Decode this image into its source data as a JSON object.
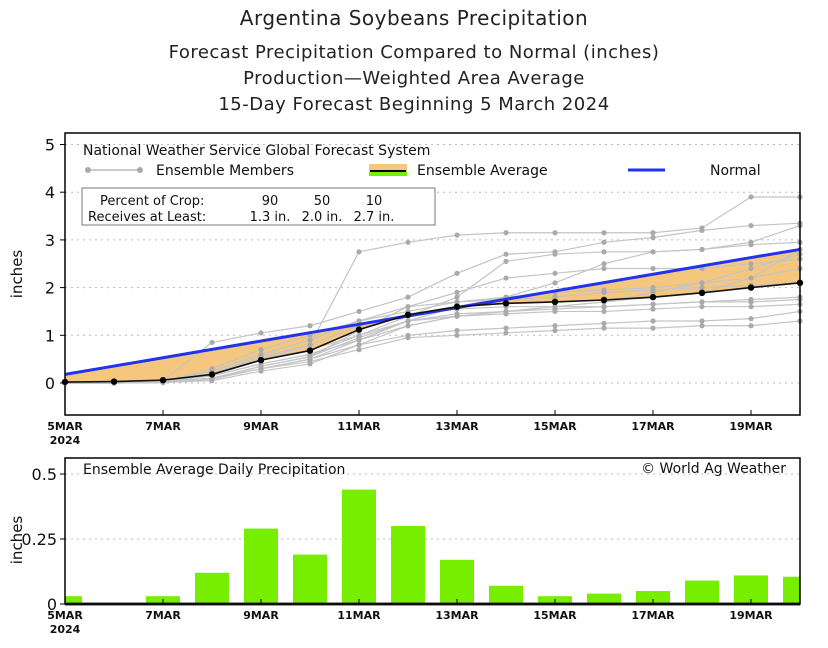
{
  "titles": [
    "Argentina Soybeans Precipitation",
    "Forecast Precipitation Compared to Normal (inches)",
    "Production—Weighted Area Average",
    "15-Day Forecast Beginning 5 March 2024"
  ],
  "chart_data": [
    {
      "type": "line",
      "ylabel": "inches",
      "ylim": [
        -0.67,
        5.2
      ],
      "yticks": [
        0,
        1,
        2,
        3,
        4,
        5
      ],
      "x_dates": [
        "5MAR",
        "6MAR",
        "7MAR",
        "8MAR",
        "9MAR",
        "10MAR",
        "11MAR",
        "12MAR",
        "13MAR",
        "14MAR",
        "15MAR",
        "16MAR",
        "17MAR",
        "18MAR",
        "19MAR",
        "20MAR"
      ],
      "xtick_labels": [
        {
          "label": "5MAR",
          "sub": "2024",
          "day": 5
        },
        {
          "label": "7MAR",
          "day": 7
        },
        {
          "label": "9MAR",
          "day": 9
        },
        {
          "label": "11MAR",
          "day": 11
        },
        {
          "label": "13MAR",
          "day": 13
        },
        {
          "label": "15MAR",
          "day": 15
        },
        {
          "label": "17MAR",
          "day": 17
        },
        {
          "label": "19MAR",
          "day": 19
        }
      ],
      "grid": true,
      "source_label": "National Weather Service Global Forecast System",
      "legend": [
        {
          "name": "Ensemble Members",
          "color": "#aaaaaa"
        },
        {
          "name": "Ensemble Average",
          "color": "#000000",
          "fill": "#f5c77e",
          "fill_below": "#77ee00"
        },
        {
          "name": "Normal",
          "color": "#2233ee"
        }
      ],
      "crop_table": {
        "row1_label": "Percent of Crop:",
        "row2_label": "Receives at Least:",
        "percents": [
          "90",
          "50",
          "10"
        ],
        "amounts": [
          "1.3 in.",
          "2.0 in.",
          "2.7 in."
        ]
      },
      "ensemble_average": [
        0.02,
        0.03,
        0.06,
        0.18,
        0.48,
        0.68,
        1.12,
        1.43,
        1.6,
        1.67,
        1.7,
        1.74,
        1.8,
        1.89,
        2.0,
        2.1
      ],
      "normal": [
        0.18,
        0.355,
        0.53,
        0.705,
        0.88,
        1.055,
        1.23,
        1.405,
        1.58,
        1.755,
        1.93,
        2.105,
        2.28,
        2.455,
        2.63,
        2.8
      ],
      "ensemble_members": [
        [
          0,
          0,
          0.05,
          0.2,
          0.5,
          0.8,
          2.75,
          2.95,
          3.1,
          3.15,
          3.15,
          3.15,
          3.15,
          3.25,
          3.9,
          3.9
        ],
        [
          0,
          0,
          0.05,
          0.85,
          1.05,
          1.2,
          1.5,
          1.8,
          2.3,
          2.7,
          2.75,
          2.95,
          3.05,
          3.2,
          3.3,
          3.35
        ],
        [
          0,
          0,
          0.03,
          0.15,
          0.4,
          0.6,
          1.0,
          1.4,
          1.8,
          2.55,
          2.7,
          2.75,
          2.75,
          2.8,
          2.9,
          2.95
        ],
        [
          0,
          0,
          0.02,
          0.1,
          0.3,
          0.5,
          0.9,
          1.3,
          1.6,
          1.8,
          2.1,
          2.5,
          2.75,
          2.8,
          2.95,
          3.3
        ],
        [
          0,
          0,
          0.02,
          0.1,
          0.35,
          0.55,
          1.1,
          1.6,
          1.9,
          2.2,
          2.3,
          2.4,
          2.4,
          2.4,
          2.5,
          2.6
        ],
        [
          0,
          0,
          0.01,
          0.05,
          0.25,
          0.4,
          0.8,
          1.2,
          1.4,
          1.5,
          1.6,
          1.7,
          1.8,
          1.9,
          2.2,
          2.8
        ],
        [
          0,
          0,
          0.03,
          0.3,
          0.7,
          1.0,
          1.3,
          1.5,
          1.7,
          1.8,
          1.9,
          1.95,
          2.0,
          2.1,
          2.2,
          2.4
        ],
        [
          0,
          0,
          0.02,
          0.15,
          0.4,
          0.6,
          0.9,
          1.2,
          1.4,
          1.5,
          1.55,
          1.6,
          1.65,
          1.7,
          1.75,
          1.8
        ],
        [
          0,
          0,
          0.01,
          0.1,
          0.3,
          0.5,
          0.8,
          1.0,
          1.1,
          1.15,
          1.2,
          1.25,
          1.3,
          1.3,
          1.35,
          1.5
        ],
        [
          0,
          0,
          0.02,
          0.2,
          0.55,
          0.8,
          1.2,
          1.45,
          1.55,
          1.6,
          1.6,
          1.6,
          1.65,
          1.7,
          1.7,
          1.75
        ],
        [
          0,
          0,
          0.01,
          0.08,
          0.3,
          0.45,
          0.7,
          0.95,
          1.0,
          1.05,
          1.1,
          1.15,
          1.15,
          1.2,
          1.2,
          1.3
        ],
        [
          0,
          0,
          0.02,
          0.2,
          0.5,
          0.7,
          1.0,
          1.3,
          1.45,
          1.5,
          1.6,
          1.7,
          1.9,
          2.1,
          2.4,
          2.7
        ],
        [
          0,
          0,
          0.03,
          0.25,
          0.6,
          0.9,
          1.3,
          1.6,
          1.7,
          1.75,
          1.8,
          1.9,
          1.95,
          2.0,
          2.05,
          2.1
        ],
        [
          0,
          0,
          0.02,
          0.1,
          0.35,
          0.55,
          0.95,
          1.3,
          1.4,
          1.45,
          1.5,
          1.5,
          1.55,
          1.6,
          1.6,
          1.65
        ]
      ]
    },
    {
      "type": "bar",
      "title": "Ensemble Average Daily Precipitation",
      "annotation": "© World Ag Weather",
      "ylabel": "inches",
      "ylim": [
        0,
        0.56
      ],
      "yticks": [
        "0",
        "0.25",
        "0.5"
      ],
      "ytick_values": [
        0,
        0.25,
        0.5
      ],
      "bar_color": "#77ee00",
      "categories": [
        "5MAR",
        "6MAR",
        "7MAR",
        "8MAR",
        "9MAR",
        "10MAR",
        "11MAR",
        "12MAR",
        "13MAR",
        "14MAR",
        "15MAR",
        "16MAR",
        "17MAR",
        "18MAR",
        "19MAR",
        "20MAR"
      ],
      "values": [
        0.03,
        0.003,
        0.03,
        0.12,
        0.29,
        0.19,
        0.44,
        0.3,
        0.17,
        0.07,
        0.03,
        0.04,
        0.05,
        0.09,
        0.11,
        0.105
      ]
    }
  ]
}
